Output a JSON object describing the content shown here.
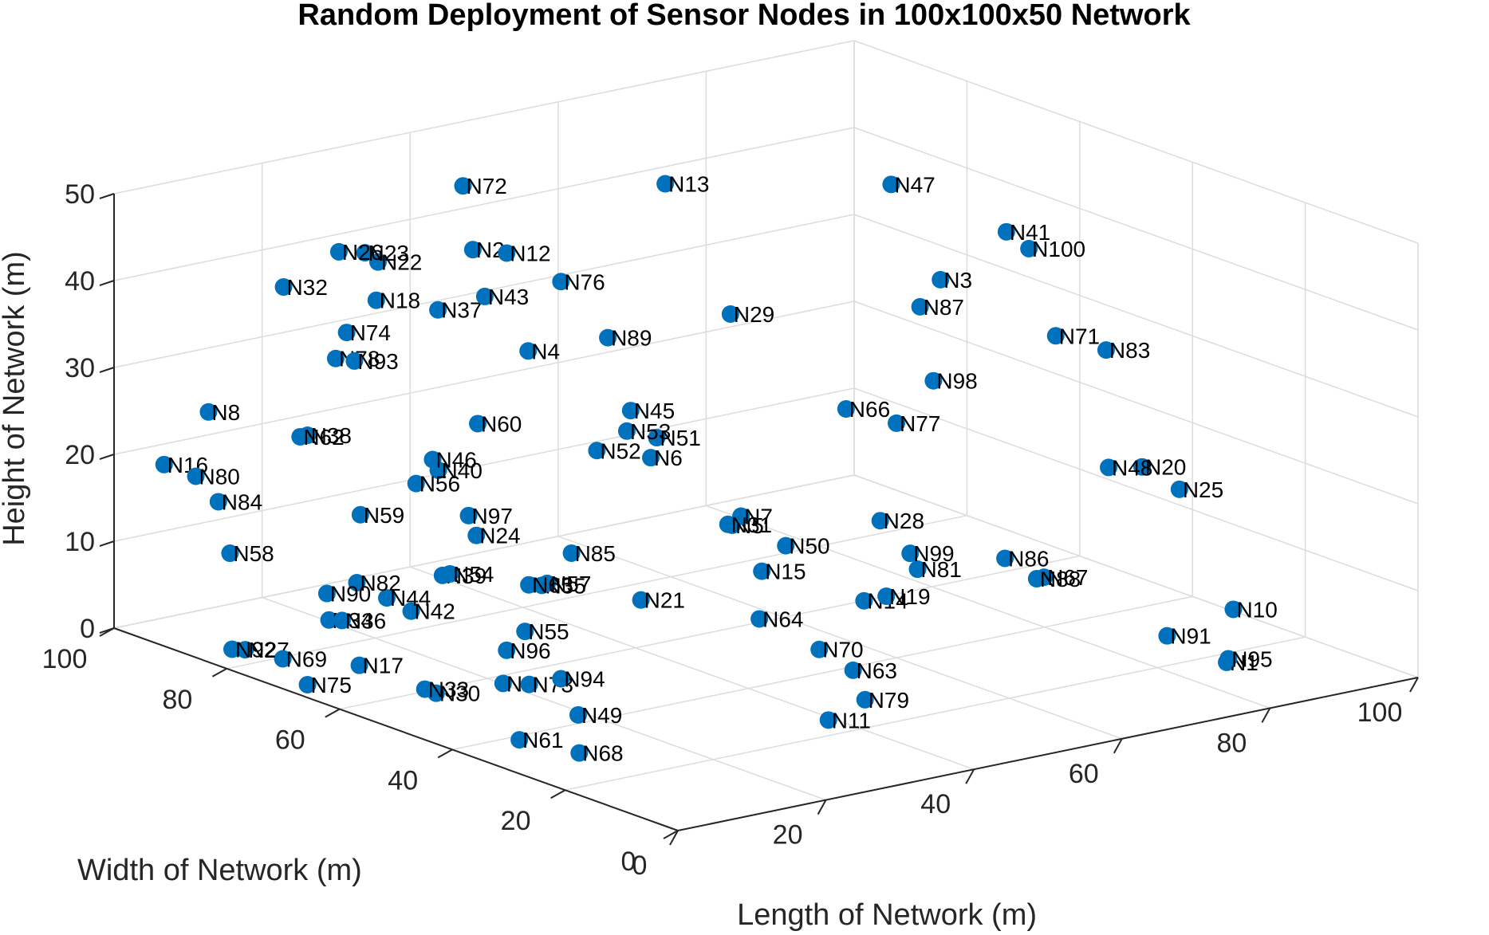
{
  "chart_data": {
    "type": "scatter",
    "title": "Random Deployment of Sensor Nodes in 100x100x50 Network",
    "xlabel": "Length of Network (m)",
    "ylabel": "Width of Network (m)",
    "zlabel": "Height of Network (m)",
    "xlim": [
      0,
      100
    ],
    "ylim": [
      0,
      100
    ],
    "zlim": [
      0,
      50
    ],
    "xticks": [
      "0",
      "20",
      "40",
      "60",
      "80",
      "100"
    ],
    "yticks": [
      "0",
      "20",
      "40",
      "60",
      "80",
      "100"
    ],
    "zticks": [
      "0",
      "10",
      "20",
      "30",
      "40",
      "50"
    ],
    "grid": true,
    "marker_color": "#0072bd",
    "points": [
      {
        "label": "N1",
        "x": 81,
        "y": 9,
        "z": 3
      },
      {
        "label": "N2",
        "x": 34,
        "y": 81,
        "z": 42
      },
      {
        "label": "N3",
        "x": 69,
        "y": 44,
        "z": 41
      },
      {
        "label": "N4",
        "x": 27,
        "y": 62,
        "z": 36
      },
      {
        "label": "N5",
        "x": 34,
        "y": 35,
        "z": 21
      },
      {
        "label": "N6",
        "x": 39,
        "y": 56,
        "z": 23
      },
      {
        "label": "N7",
        "x": 39,
        "y": 40,
        "z": 20
      },
      {
        "label": "N8",
        "x": 12,
        "y": 99,
        "z": 23
      },
      {
        "label": "N9",
        "x": 16,
        "y": 52,
        "z": 2
      },
      {
        "label": "N10",
        "x": 88,
        "y": 17,
        "z": 6
      },
      {
        "label": "N11",
        "x": 31,
        "y": 14,
        "z": 4
      },
      {
        "label": "N12",
        "x": 34,
        "y": 75,
        "z": 43
      },
      {
        "label": "N13",
        "x": 60,
        "y": 81,
        "z": 45
      },
      {
        "label": "N14",
        "x": 48,
        "y": 30,
        "z": 11
      },
      {
        "label": "N15",
        "x": 38,
        "y": 35,
        "z": 15
      },
      {
        "label": "N16",
        "x": 6,
        "y": 99,
        "z": 18
      },
      {
        "label": "N17",
        "x": 8,
        "y": 67,
        "z": 2
      },
      {
        "label": "N18",
        "x": 24,
        "y": 85,
        "z": 37
      },
      {
        "label": "N19",
        "x": 51,
        "y": 30,
        "z": 11
      },
      {
        "label": "N20",
        "x": 81,
        "y": 24,
        "z": 22
      },
      {
        "label": "N21",
        "x": 27,
        "y": 42,
        "z": 12
      },
      {
        "label": "N22",
        "x": 25,
        "y": 86,
        "z": 41
      },
      {
        "label": "N23",
        "x": 24,
        "y": 87,
        "z": 42
      },
      {
        "label": "N24",
        "x": 20,
        "y": 62,
        "z": 16
      },
      {
        "label": "N25",
        "x": 83,
        "y": 20,
        "z": 20
      },
      {
        "label": "N26",
        "x": 22,
        "y": 89,
        "z": 42
      },
      {
        "label": "N27",
        "x": 4,
        "y": 82,
        "z": 1
      },
      {
        "label": "N28",
        "x": 54,
        "y": 35,
        "z": 18
      },
      {
        "label": "N29",
        "x": 49,
        "y": 55,
        "z": 38
      },
      {
        "label": "N30",
        "x": 10,
        "y": 56,
        "z": 1
      },
      {
        "label": "N31",
        "x": 38,
        "y": 41,
        "z": 19
      },
      {
        "label": "N32",
        "x": 13,
        "y": 87,
        "z": 40
      },
      {
        "label": "N33",
        "x": 10,
        "y": 58,
        "z": 1
      },
      {
        "label": "N34",
        "x": 10,
        "y": 75,
        "z": 5
      },
      {
        "label": "N35",
        "x": 22,
        "y": 53,
        "z": 12
      },
      {
        "label": "N36",
        "x": 11,
        "y": 74,
        "z": 5
      },
      {
        "label": "N37",
        "x": 27,
        "y": 78,
        "z": 37
      },
      {
        "label": "N38",
        "x": 17,
        "y": 88,
        "z": 22
      },
      {
        "label": "N39",
        "x": 20,
        "y": 68,
        "z": 10
      },
      {
        "label": "N40",
        "x": 24,
        "y": 74,
        "z": 20
      },
      {
        "label": "N41",
        "x": 84,
        "y": 52,
        "z": 42
      },
      {
        "label": "N42",
        "x": 15,
        "y": 67,
        "z": 7
      },
      {
        "label": "N43",
        "x": 28,
        "y": 71,
        "z": 40
      },
      {
        "label": "N44",
        "x": 14,
        "y": 70,
        "z": 8
      },
      {
        "label": "N45",
        "x": 34,
        "y": 53,
        "z": 30
      },
      {
        "label": "N46",
        "x": 24,
        "y": 75,
        "z": 21
      },
      {
        "label": "N47",
        "x": 73,
        "y": 58,
        "z": 48
      },
      {
        "label": "N48",
        "x": 78,
        "y": 26,
        "z": 22
      },
      {
        "label": "N49",
        "x": 17,
        "y": 40,
        "z": 1
      },
      {
        "label": "N50",
        "x": 42,
        "y": 36,
        "z": 17
      },
      {
        "label": "N51",
        "x": 36,
        "y": 51,
        "z": 27
      },
      {
        "label": "N52",
        "x": 34,
        "y": 59,
        "z": 24
      },
      {
        "label": "N53",
        "x": 35,
        "y": 55,
        "z": 27
      },
      {
        "label": "N54",
        "x": 21,
        "y": 68,
        "z": 10
      },
      {
        "label": "N55",
        "x": 22,
        "y": 56,
        "z": 6
      },
      {
        "label": "N56",
        "x": 21,
        "y": 74,
        "z": 19
      },
      {
        "label": "N57",
        "x": 25,
        "y": 56,
        "z": 11
      },
      {
        "label": "N58",
        "x": 5,
        "y": 86,
        "z": 11
      },
      {
        "label": "N59",
        "x": 15,
        "y": 76,
        "z": 16
      },
      {
        "label": "N60",
        "x": 24,
        "y": 67,
        "z": 27
      },
      {
        "label": "N61",
        "x": 6,
        "y": 36,
        "z": 1
      },
      {
        "label": "N62",
        "x": 16,
        "y": 88,
        "z": 22
      },
      {
        "label": "N63",
        "x": 45,
        "y": 28,
        "z": 4
      },
      {
        "label": "N64",
        "x": 43,
        "y": 42,
        "z": 7
      },
      {
        "label": "N65",
        "x": 21,
        "y": 54,
        "z": 12
      },
      {
        "label": "N66",
        "x": 57,
        "y": 45,
        "z": 28
      },
      {
        "label": "N67",
        "x": 67,
        "y": 23,
        "z": 12
      },
      {
        "label": "N68",
        "x": 8,
        "y": 28,
        "z": 1
      },
      {
        "label": "N69",
        "x": 3,
        "y": 74,
        "z": 2
      },
      {
        "label": "N70",
        "x": 45,
        "y": 34,
        "z": 5
      },
      {
        "label": "N71",
        "x": 80,
        "y": 38,
        "z": 34
      },
      {
        "label": "N72",
        "x": 38,
        "y": 88,
        "z": 47
      },
      {
        "label": "N73",
        "x": 18,
        "y": 50,
        "z": 2
      },
      {
        "label": "N74",
        "x": 20,
        "y": 85,
        "z": 34
      },
      {
        "label": "N75",
        "x": 1,
        "y": 67,
        "z": 1
      },
      {
        "label": "N76",
        "x": 36,
        "y": 68,
        "z": 41
      },
      {
        "label": "N77",
        "x": 60,
        "y": 40,
        "z": 27
      },
      {
        "label": "N78",
        "x": 17,
        "y": 83,
        "z": 32
      },
      {
        "label": "N79",
        "x": 39,
        "y": 18,
        "z": 4
      },
      {
        "label": "N80",
        "x": 8,
        "y": 96,
        "z": 17
      },
      {
        "label": "N81",
        "x": 56,
        "y": 31,
        "z": 13
      },
      {
        "label": "N82",
        "x": 13,
        "y": 74,
        "z": 9
      },
      {
        "label": "N83",
        "x": 83,
        "y": 33,
        "z": 33
      },
      {
        "label": "N84",
        "x": 8,
        "y": 92,
        "z": 15
      },
      {
        "label": "N85",
        "x": 26,
        "y": 53,
        "z": 15
      },
      {
        "label": "N86",
        "x": 64,
        "y": 26,
        "z": 14
      },
      {
        "label": "N87",
        "x": 67,
        "y": 45,
        "z": 38
      },
      {
        "label": "N88",
        "x": 66,
        "y": 23,
        "z": 12
      },
      {
        "label": "N89",
        "x": 37,
        "y": 61,
        "z": 36
      },
      {
        "label": "N90",
        "x": 12,
        "y": 78,
        "z": 7
      },
      {
        "label": "N91",
        "x": 76,
        "y": 13,
        "z": 6
      },
      {
        "label": "N92",
        "x": 3,
        "y": 83,
        "z": 1
      },
      {
        "label": "N93",
        "x": 18,
        "y": 81,
        "z": 32
      },
      {
        "label": "N94",
        "x": 20,
        "y": 47,
        "z": 3
      },
      {
        "label": "N95",
        "x": 82,
        "y": 10,
        "z": 3
      },
      {
        "label": "N96",
        "x": 18,
        "y": 54,
        "z": 5
      },
      {
        "label": "N97",
        "x": 22,
        "y": 66,
        "z": 17
      },
      {
        "label": "N98",
        "x": 65,
        "y": 40,
        "z": 31
      },
      {
        "label": "N99",
        "x": 55,
        "y": 31,
        "z": 15
      },
      {
        "label": "N100",
        "x": 84,
        "y": 48,
        "z": 41
      }
    ]
  }
}
